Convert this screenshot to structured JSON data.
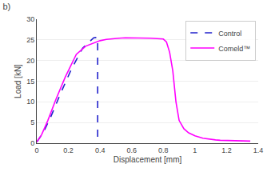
{
  "chart_data": {
    "type": "line",
    "title": "b)",
    "x_label": "Displacement [mm]",
    "y_label": "Load [kN]",
    "xlim": [
      0,
      1.4
    ],
    "ylim": [
      0,
      30
    ],
    "xticks": [
      0,
      0.2,
      0.4,
      0.6,
      0.8,
      1.0,
      1.2,
      1.4
    ],
    "yticks": [
      0,
      5,
      10,
      15,
      20,
      25,
      30
    ],
    "grid": "y",
    "legend": "upper right",
    "series": [
      {
        "name": "Control",
        "color": "#2222cc",
        "line_style": "dashed",
        "x": [
          0.0,
          0.04,
          0.09,
          0.15,
          0.22,
          0.29,
          0.36,
          0.385,
          0.385,
          0.385
        ],
        "values": [
          0.3,
          2.5,
          6.5,
          12.0,
          18.0,
          23.0,
          25.5,
          25.6,
          25.6,
          0.0
        ]
      },
      {
        "name": "Comeld™",
        "color": "#ff00ff",
        "line_style": "solid",
        "x": [
          0.0,
          0.03,
          0.07,
          0.12,
          0.18,
          0.25,
          0.31,
          0.37,
          0.4,
          0.44,
          0.48,
          0.52,
          0.56,
          0.6,
          0.64,
          0.68,
          0.72,
          0.76,
          0.8,
          0.82,
          0.84,
          0.86,
          0.88,
          0.9,
          0.93,
          0.96,
          1.0,
          1.05,
          1.1,
          1.13,
          1.16,
          1.2,
          1.25,
          1.3,
          1.35
        ],
        "values": [
          0.3,
          2.0,
          5.5,
          10.5,
          16.0,
          21.5,
          23.5,
          24.3,
          24.8,
          25.1,
          25.3,
          25.4,
          25.5,
          25.5,
          25.5,
          25.5,
          25.4,
          25.3,
          25.2,
          24.5,
          22.0,
          17.5,
          10.0,
          5.5,
          3.5,
          2.5,
          1.8,
          1.2,
          0.9,
          0.8,
          0.7,
          0.65,
          0.6,
          0.55,
          0.5
        ]
      }
    ]
  }
}
